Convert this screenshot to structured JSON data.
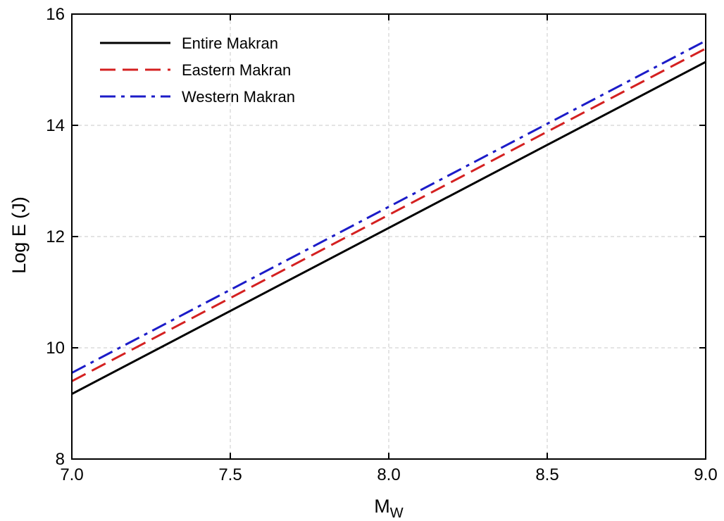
{
  "chart_data": {
    "type": "line",
    "title": "",
    "xlabel_main": "M",
    "xlabel_sub": "W",
    "ylabel": "Log E (J)",
    "xlim": [
      7.0,
      9.0
    ],
    "ylim": [
      8,
      16
    ],
    "x_ticks": [
      7.0,
      7.5,
      8.0,
      8.5,
      9.0
    ],
    "x_tick_labels": [
      "7.0",
      "7.5",
      "8.0",
      "8.5",
      "9.0"
    ],
    "y_ticks": [
      8,
      10,
      12,
      14,
      16
    ],
    "y_tick_labels": [
      "8",
      "10",
      "12",
      "14",
      "16"
    ],
    "grid": true,
    "legend_position": "top-left",
    "series": [
      {
        "name": "Entire Makran",
        "x": [
          7.0,
          9.0
        ],
        "y": [
          9.17,
          15.14
        ],
        "color": "#000000",
        "style": "solid"
      },
      {
        "name": "Eastern Makran",
        "x": [
          7.0,
          9.0
        ],
        "y": [
          9.4,
          15.38
        ],
        "color": "#d42020",
        "style": "dashed"
      },
      {
        "name": "Western Makran",
        "x": [
          7.0,
          9.0
        ],
        "y": [
          9.55,
          15.52
        ],
        "color": "#1c1cc8",
        "style": "dashdot"
      }
    ]
  }
}
